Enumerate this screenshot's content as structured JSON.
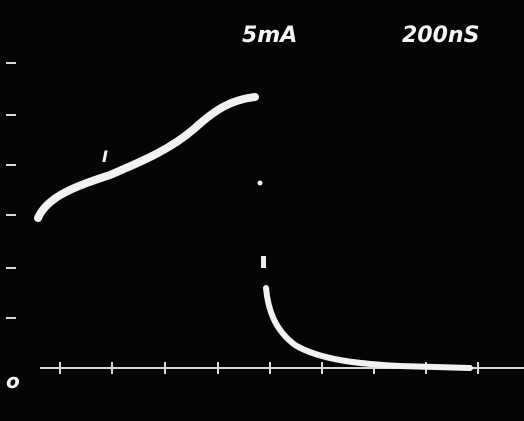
{
  "scale": {
    "current": "5mA",
    "time": "200nS"
  },
  "trace_label": "I",
  "zero_label": "o"
}
